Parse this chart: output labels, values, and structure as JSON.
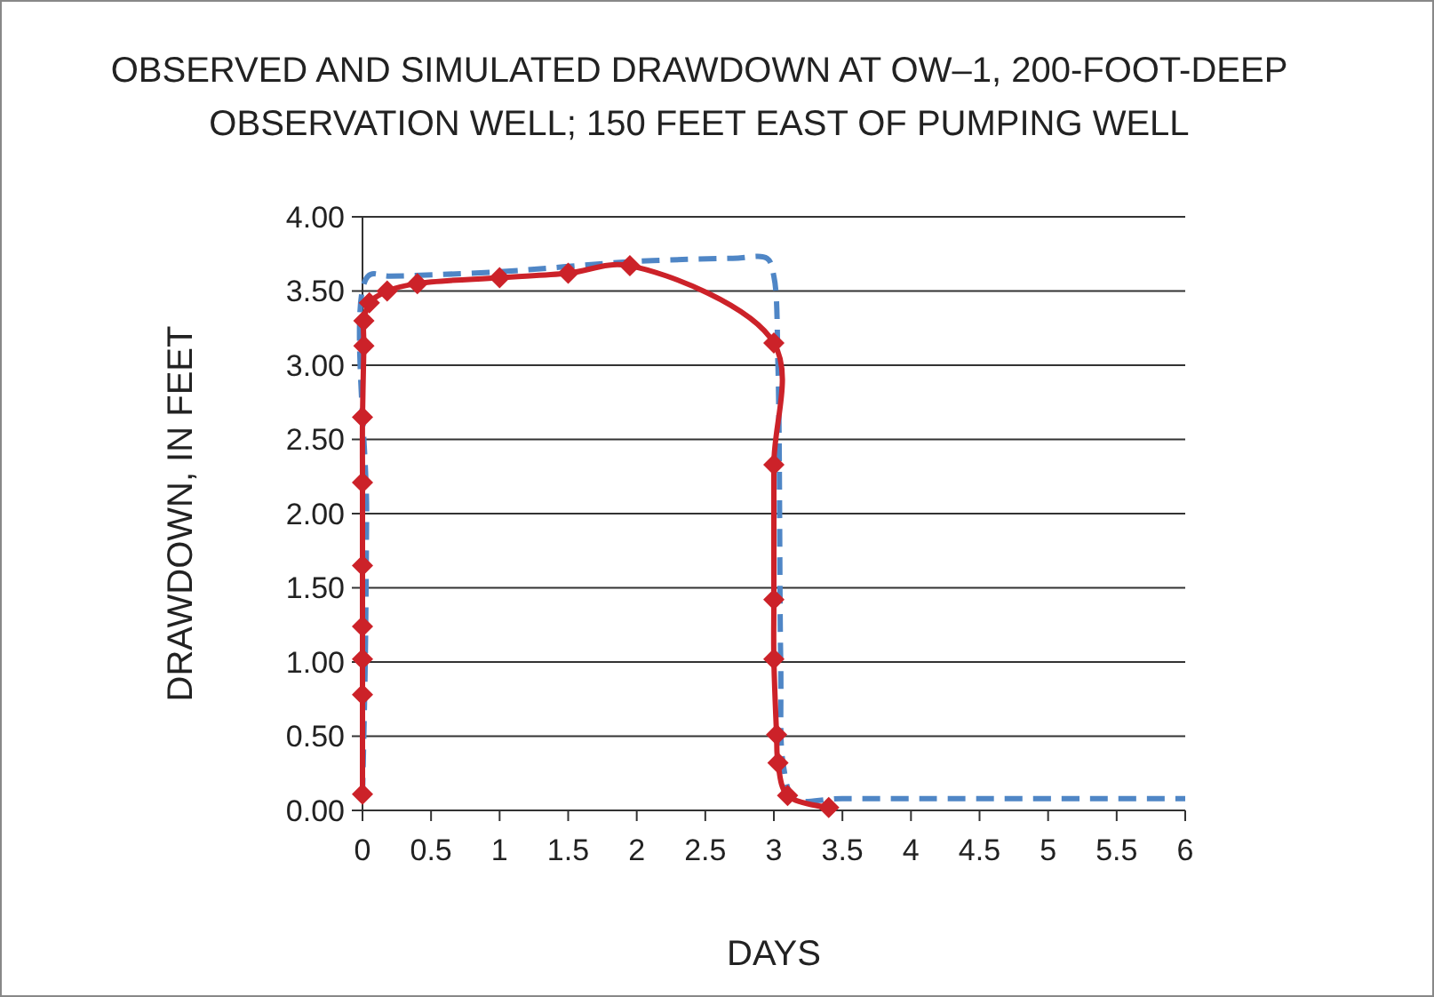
{
  "chart_data": {
    "type": "line",
    "title": "OBSERVED AND SIMULATED DRAWDOWN AT OW–1, 200-FOOT-DEEP OBSERVATION WELL; 150 FEET EAST OF PUMPING WELL",
    "xlabel": "DAYS",
    "ylabel": "DRAWDOWN, IN FEET",
    "xlim": [
      0,
      6
    ],
    "xticks": [
      0,
      0.5,
      1,
      1.5,
      2,
      2.5,
      3,
      3.5,
      4,
      4.5,
      5,
      5.5,
      6
    ],
    "ylim": [
      0,
      4
    ],
    "yticks": [
      {
        "value": 0,
        "label": "0.00"
      },
      {
        "value": 0.5,
        "label": "0.50"
      },
      {
        "value": 1,
        "label": "1.00"
      },
      {
        "value": 1.5,
        "label": "1.50"
      },
      {
        "value": 2,
        "label": "2.00"
      },
      {
        "value": 2.5,
        "label": "2.50"
      },
      {
        "value": 3,
        "label": "3.00"
      },
      {
        "value": 3.5,
        "label": "3.50"
      },
      {
        "value": 4,
        "label": "4.00"
      }
    ],
    "grid": "y",
    "series": [
      {
        "color": "#4f86c6",
        "line_style": "dashed",
        "marker": "none",
        "x": [
          0,
          0.02,
          0.03,
          0.04,
          0.2,
          1,
          2,
          2.7,
          2.95,
          3.0,
          3.03,
          3.05,
          3.07,
          3.15,
          3.5,
          6
        ],
        "values": [
          0.1,
          1.0,
          2.0,
          3.6,
          3.6,
          3.63,
          3.7,
          3.72,
          3.72,
          3.6,
          3.0,
          1.0,
          0.3,
          0.08,
          0.08,
          0.08
        ]
      },
      {
        "color": "#cc2229",
        "line_style": "solid",
        "marker": "diamond",
        "x": [
          0,
          0,
          0,
          0,
          0,
          0,
          0,
          0.01,
          0.01,
          0.05,
          0.18,
          0.4,
          1.0,
          1.5,
          1.95,
          3.0,
          3.0,
          3.0,
          3.0,
          3.02,
          3.03,
          3.1,
          3.4
        ],
        "values": [
          0.11,
          0.78,
          1.02,
          1.24,
          1.65,
          2.21,
          2.65,
          3.13,
          3.3,
          3.42,
          3.5,
          3.55,
          3.59,
          3.62,
          3.67,
          3.15,
          2.33,
          1.42,
          1.02,
          0.51,
          0.32,
          0.1,
          0.02
        ]
      }
    ]
  }
}
